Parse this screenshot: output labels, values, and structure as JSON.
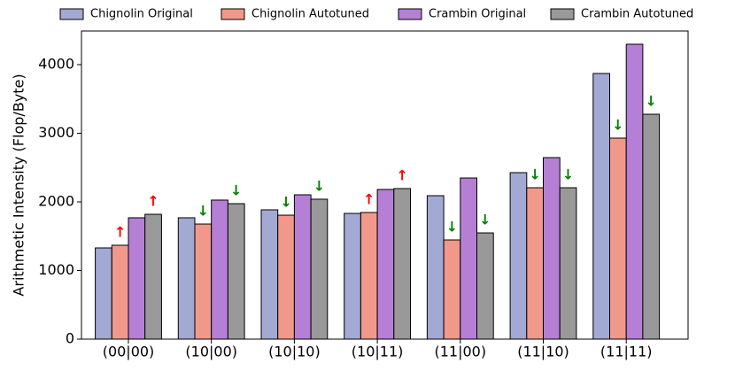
{
  "chart_data": {
    "type": "bar",
    "y_label": "Arithmetic Intensity (Flop/Byte)",
    "categories": [
      "(00|00)",
      "(10|00)",
      "(10|10)",
      "(10|11)",
      "(11|00)",
      "(11|10)",
      "(11|11)"
    ],
    "series": [
      {
        "name": "Chignolin Original",
        "color": "#a2a9d2",
        "values": [
          1329,
          1768,
          1884,
          1832,
          2090,
          2426,
          3871
        ]
      },
      {
        "name": "Chignolin Autotuned",
        "color": "#f0998a",
        "values": [
          1368,
          1677,
          1806,
          1845,
          1445,
          2206,
          2929
        ],
        "annotations": [
          {
            "text": "↑",
            "color": "red"
          },
          {
            "text": "↓",
            "color": "green"
          },
          {
            "text": "↓",
            "color": "green"
          },
          {
            "text": "↑",
            "color": "red"
          },
          {
            "text": "↓",
            "color": "green"
          },
          {
            "text": "↓",
            "color": "green"
          },
          {
            "text": "↓",
            "color": "green"
          }
        ]
      },
      {
        "name": "Crambin Original",
        "color": "#b57fd6",
        "values": [
          1768,
          2026,
          2103,
          2181,
          2348,
          2645,
          4297
        ]
      },
      {
        "name": "Crambin Autotuned",
        "color": "#999999",
        "values": [
          1819,
          1974,
          2039,
          2194,
          1548,
          2206,
          3277
        ],
        "annotations": [
          {
            "text": "↑",
            "color": "red"
          },
          {
            "text": "↓",
            "color": "green"
          },
          {
            "text": "↓",
            "color": "green"
          },
          {
            "text": "↑",
            "color": "red"
          },
          {
            "text": "↓",
            "color": "green"
          },
          {
            "text": "↓",
            "color": "green"
          },
          {
            "text": "↓",
            "color": "green"
          }
        ]
      }
    ],
    "ylim": [
      0,
      4490
    ],
    "yticks": [
      0,
      1000,
      2000,
      3000,
      4000
    ],
    "legend": "top"
  }
}
